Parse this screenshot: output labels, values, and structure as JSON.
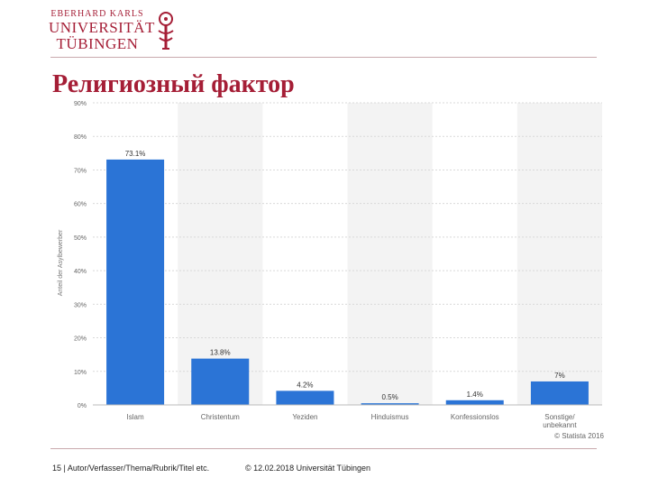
{
  "header": {
    "logo_line1": "EBERHARD KARLS",
    "logo_line2": "UNIVERSITÄT",
    "logo_line3": "TÜBINGEN",
    "title": "Религиозный фактор"
  },
  "chart_data": {
    "type": "bar",
    "categories": [
      "Islam",
      "Christentum",
      "Yeziden",
      "Hinduismus",
      "Konfessionslos",
      "Sonstige/ unbekannt"
    ],
    "values": [
      73.1,
      13.8,
      4.2,
      0.5,
      1.4,
      7
    ],
    "data_labels": [
      "73.1%",
      "13.8%",
      "4.2%",
      "0.5%",
      "1.4%",
      "7%"
    ],
    "ylabel": "Anteil der Asylbewerber",
    "ylim": [
      0,
      90
    ],
    "yticks": [
      0,
      10,
      20,
      30,
      40,
      50,
      60,
      70,
      80,
      90
    ],
    "ytick_labels": [
      "0%",
      "10%",
      "20%",
      "30%",
      "40%",
      "50%",
      "60%",
      "70%",
      "80%",
      "90%"
    ],
    "grid": true,
    "bar_color": "#2b74d6",
    "source": "© Statista 2016"
  },
  "footer": {
    "left": "15 | Autor/Verfasser/Thema/Rubrik/Titel etc.",
    "right": "© 12.02.2018 Universität Tübingen"
  },
  "colors": {
    "accent": "#a51e36",
    "bar": "#2b74d6"
  }
}
